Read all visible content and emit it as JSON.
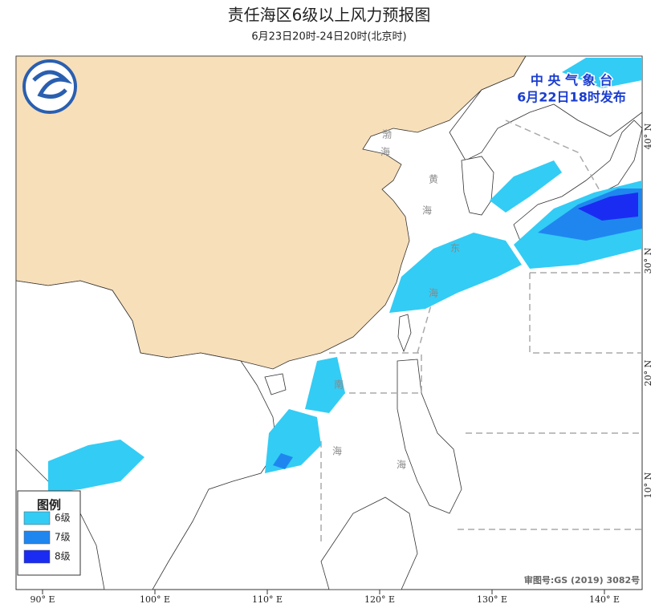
{
  "header": {
    "title": "责任海区6级以上风力预报图",
    "subtitle": "6月23日20时-24日20时(北京时)"
  },
  "issuer": {
    "name": "中 央 气 象 台",
    "time": "6月22日18时发布"
  },
  "legend": {
    "title": "图例",
    "items": [
      {
        "label": "6级",
        "color": "#33ccf5"
      },
      {
        "label": "7级",
        "color": "#1f86f0"
      },
      {
        "label": "8级",
        "color": "#1a2cf2"
      }
    ]
  },
  "axes": {
    "longitude": [
      "90° E",
      "100° E",
      "110° E",
      "120° E",
      "130° E",
      "140° E"
    ],
    "latitude": [
      "40° N",
      "30° N",
      "20° N",
      "10° N"
    ]
  },
  "sea_labels": [
    "渤",
    "海",
    "黄",
    "海",
    "东",
    "海",
    "南",
    "海",
    "海"
  ],
  "map_number": "审图号:GS (2019) 3082号"
}
